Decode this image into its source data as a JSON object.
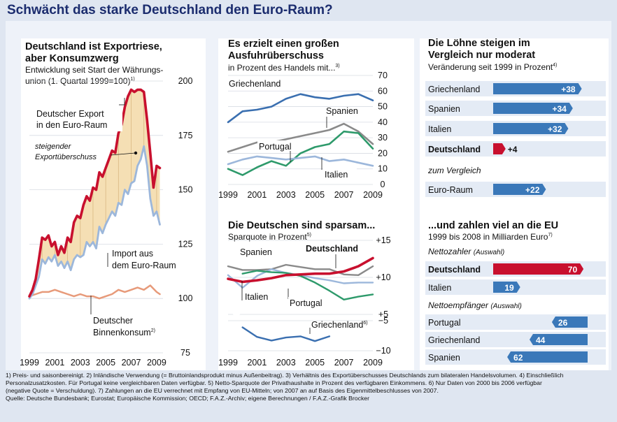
{
  "title": "Schwächt das starke Deutschland den Euro-Raum?",
  "colors": {
    "red": "#c8102e",
    "blue": "#3a6fb0",
    "lightblue": "#9cb7db",
    "gray": "#8a8a8a",
    "green": "#2e9a6b",
    "salmon": "#e79a7a",
    "fill": "#f5dfb4",
    "barblue": "#3a78b9",
    "navy": "#1b2c6e"
  },
  "chart_data": [
    {
      "type": "line",
      "title": "Deutschland ist Exportriese, aber Konsumzwerg",
      "subtitle_line1": "Entwicklung seit Start der Währungs-",
      "subtitle_line2": "union (1. Quartal 1999=100)",
      "subtitle_sup": "1)",
      "yticks": [
        "75",
        "100",
        "125",
        "150",
        "175",
        "200"
      ],
      "xticks": [
        "1999",
        "2001",
        "2003",
        "2005",
        "2007",
        "2009"
      ],
      "ylim": [
        75,
        200
      ],
      "xlim": [
        1999,
        2009.5
      ],
      "series": [
        {
          "name": "Deutscher Export in den Euro-Raum",
          "color": "red",
          "x": [
            1999,
            1999.25,
            1999.5,
            1999.75,
            2000,
            2000.25,
            2000.5,
            2000.75,
            2001,
            2001.25,
            2001.5,
            2001.75,
            2002,
            2002.25,
            2002.5,
            2002.75,
            2003,
            2003.25,
            2003.5,
            2003.75,
            2004,
            2004.25,
            2004.5,
            2004.75,
            2005,
            2005.25,
            2005.5,
            2005.75,
            2006,
            2006.25,
            2006.5,
            2006.75,
            2007,
            2007.25,
            2007.5,
            2007.75,
            2008,
            2008.25,
            2008.5,
            2008.75,
            2009,
            2009.25
          ],
          "y": [
            101,
            104,
            109,
            118,
            128,
            127,
            129,
            124,
            126,
            120,
            124,
            121,
            128,
            126,
            135,
            138,
            137,
            143,
            147,
            145,
            151,
            150,
            158,
            156,
            160,
            164,
            168,
            167,
            176,
            180,
            188,
            193,
            196,
            195,
            196,
            196,
            195,
            182,
            167,
            151,
            161,
            160
          ]
        },
        {
          "name": "Import aus dem Euro-Raum",
          "color": "lightblue",
          "x": [
            1999,
            1999.25,
            1999.5,
            1999.75,
            2000,
            2000.25,
            2000.5,
            2000.75,
            2001,
            2001.25,
            2001.5,
            2001.75,
            2002,
            2002.25,
            2002.5,
            2002.75,
            2003,
            2003.25,
            2003.5,
            2003.75,
            2004,
            2004.25,
            2004.5,
            2004.75,
            2005,
            2005.25,
            2005.5,
            2005.75,
            2006,
            2006.25,
            2006.5,
            2006.75,
            2007,
            2007.25,
            2007.5,
            2007.75,
            2008,
            2008.25,
            2008.5,
            2008.75,
            2009,
            2009.25
          ],
          "y": [
            100,
            102,
            106,
            110,
            118,
            116,
            119,
            117,
            120,
            115,
            117,
            114,
            117,
            113,
            118,
            120,
            119,
            120,
            126,
            124,
            126,
            123,
            133,
            130,
            134,
            137,
            140,
            138,
            144,
            143,
            150,
            148,
            153,
            154,
            161,
            164,
            170,
            161,
            146,
            138,
            140,
            134
          ]
        },
        {
          "name": "Deutscher Binnenkonsum",
          "sup": "2)",
          "color": "salmon",
          "x": [
            1999,
            1999.5,
            2000,
            2000.5,
            2001,
            2001.5,
            2002,
            2002.5,
            2003,
            2003.5,
            2004,
            2004.5,
            2005,
            2005.5,
            2006,
            2006.5,
            2007,
            2007.5,
            2008,
            2008.5,
            2009,
            2009.25
          ],
          "y": [
            101,
            102,
            103,
            103,
            104,
            103,
            102,
            101,
            102,
            101,
            101,
            100,
            101,
            102,
            104,
            103,
            104,
            105,
            104,
            106,
            103,
            102
          ]
        }
      ],
      "annotations": [
        "steigender Exportüberschuss"
      ]
    },
    {
      "type": "line",
      "title": "Es erzielt einen großen Ausfuhrüberschuss",
      "subtitle": "in Prozent des Handels mit...",
      "subtitle_sup": "3)",
      "yticks": [
        "0",
        "10",
        "20",
        "30",
        "40",
        "50",
        "60",
        "70"
      ],
      "xticks": [
        "1999",
        "2001",
        "2003",
        "2005",
        "2007",
        "2009"
      ],
      "ylim": [
        0,
        70
      ],
      "series": [
        {
          "name": "Griechenland",
          "color": "blue",
          "x": [
            1999,
            2000,
            2001,
            2002,
            2003,
            2004,
            2005,
            2006,
            2007,
            2008,
            2009
          ],
          "y": [
            40,
            47,
            48,
            50,
            55,
            58,
            56,
            55,
            57,
            58,
            54
          ]
        },
        {
          "name": "Spanien",
          "color": "gray",
          "x": [
            1999,
            2000,
            2001,
            2002,
            2003,
            2004,
            2005,
            2006,
            2007,
            2008,
            2009
          ],
          "y": [
            21,
            24,
            27,
            27,
            29,
            31,
            33,
            35,
            39,
            34,
            26
          ]
        },
        {
          "name": "Portugal",
          "color": "green",
          "x": [
            1999,
            2000,
            2001,
            2002,
            2003,
            2004,
            2005,
            2006,
            2007,
            2008,
            2009
          ],
          "y": [
            10,
            6,
            11,
            15,
            12,
            20,
            24,
            26,
            34,
            33,
            23
          ]
        },
        {
          "name": "Italien",
          "color": "lightblue",
          "x": [
            1999,
            2000,
            2001,
            2002,
            2003,
            2004,
            2005,
            2006,
            2007,
            2008,
            2009
          ],
          "y": [
            13,
            16,
            18,
            17,
            16,
            17,
            18,
            15,
            16,
            14,
            12
          ]
        }
      ]
    },
    {
      "type": "line",
      "title": "Die Deutschen sind sparsam...",
      "subtitle": "Sparquote in Prozent",
      "subtitle_sup": "5)",
      "yticks": [
        "+15",
        "+10",
        "+5",
        "−5",
        "−10"
      ],
      "xticks": [
        "1999",
        "2001",
        "2003",
        "2005",
        "2007",
        "2009"
      ],
      "series": [
        {
          "name": "Deutschland",
          "color": "red",
          "x": [
            1999,
            2000,
            2001,
            2002,
            2003,
            2004,
            2005,
            2006,
            2007,
            2008,
            2009
          ],
          "y": [
            9.8,
            9.4,
            9.6,
            9.9,
            10.3,
            10.4,
            10.5,
            10.5,
            10.8,
            11.5,
            12.6
          ]
        },
        {
          "name": "Spanien",
          "color": "gray",
          "x": [
            1999,
            2000,
            2001,
            2002,
            2003,
            2004,
            2005,
            2006,
            2007,
            2008,
            2009
          ],
          "y": [
            11.5,
            11.0,
            11.0,
            11.1,
            11.7,
            11.4,
            11.1,
            11.1,
            10.4,
            10.3,
            11.5
          ]
        },
        {
          "name": "Italien",
          "color": "lightblue",
          "x": [
            1999,
            2000,
            2001,
            2002,
            2003,
            2004,
            2005,
            2006,
            2007,
            2008,
            2009
          ],
          "y": [
            10.3,
            8.6,
            10.2,
            11.1,
            10.6,
            10.3,
            9.9,
            9.6,
            9.2,
            9.3,
            9.3
          ]
        },
        {
          "name": "Portugal",
          "color": "green",
          "x": [
            2000,
            2001,
            2002,
            2003,
            2004,
            2005,
            2006,
            2007,
            2008,
            2009
          ],
          "y": [
            10.5,
            10.9,
            10.7,
            10.6,
            10.2,
            9.3,
            8.2,
            7.0,
            7.4,
            7.7
          ]
        },
        {
          "name": "Griechenland",
          "sup": "6)",
          "color": "blue",
          "x": [
            2000,
            2001,
            2002,
            2003,
            2004,
            2005,
            2006
          ],
          "y": [
            -6.1,
            -7.7,
            -8.3,
            -7.8,
            -7.6,
            -8.4,
            -7.6
          ]
        }
      ]
    },
    {
      "type": "bar",
      "title": "Die Löhne steigen im Vergleich nur moderat",
      "subtitle": "Veränderung seit 1999 in Prozent",
      "subtitle_sup": "4)",
      "categories": [
        "Griechenland",
        "Spanien",
        "Italien",
        "Deutschland"
      ],
      "values": [
        38,
        34,
        32,
        4
      ],
      "labels": [
        "+38",
        "+34",
        "+32",
        "+4"
      ],
      "compare_label": "zum Vergleich",
      "compare_category": "Euro-Raum",
      "compare_value": 22,
      "compare_text": "+22",
      "xlim": [
        0,
        40
      ]
    },
    {
      "type": "bar",
      "title": "...und zahlen viel an die EU",
      "subtitle": "1999 bis 2008 in Milliarden Euro",
      "subtitle_sup": "7)",
      "group1_label": "Nettozahler",
      "group1_note": "(Auswahl)",
      "group1": [
        {
          "name": "Deutschland",
          "value": 70,
          "label": "70"
        },
        {
          "name": "Italien",
          "value": 19,
          "label": "19"
        }
      ],
      "group2_label": "Nettoempfänger",
      "group2_note": "(Auswahl)",
      "group2": [
        {
          "name": "Portugal",
          "value": 26,
          "label": "26"
        },
        {
          "name": "Griechenland",
          "value": 44,
          "label": "44"
        },
        {
          "name": "Spanien",
          "value": 62,
          "label": "62"
        }
      ],
      "xlim": [
        0,
        75
      ]
    }
  ],
  "footnotes": [
    "1) Preis- und saisonbereinigt. 2) Inländische Verwendung (= Bruttoinlandsprodukt minus Außenbeitrag). 3) Verhältnis des Exportüberschusses Deutschlands zum bilateralen Handelsvolumen. 4) Einschließlich",
    "Personalzusatzkosten. Für Portugal keine vergleichbaren Daten verfügbar. 5) Netto-Sparquote der Privathaushalte in Prozent des verfügbaren Einkommens. 6) Nur Daten von 2000 bis 2006 verfügbar",
    "(negative Quote = Verschuldung). 7) Zahlungen an die EU verrechnet mit Empfang von EU-Mitteln; von 2007 an auf Basis des Eigenmittelbeschlusses von 2007.",
    "Quelle: Deutsche Bundesbank; Eurostat; Europäische Kommission; OECD; F.A.Z.-Archiv; eigene Berechnungen / F.A.Z.-Grafik Brocker"
  ]
}
